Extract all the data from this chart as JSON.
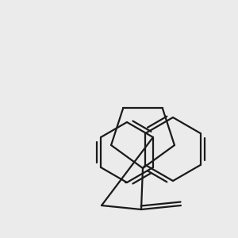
{
  "background_color": "#ebebeb",
  "bond_color": "#1a1a1a",
  "bond_width": 1.6,
  "atom_colors": {
    "N": "#2222cc",
    "O": "#cc2222",
    "Cl": "#228822",
    "H": "#666666",
    "C": "#1a1a1a"
  },
  "font_size_atom": 10
}
